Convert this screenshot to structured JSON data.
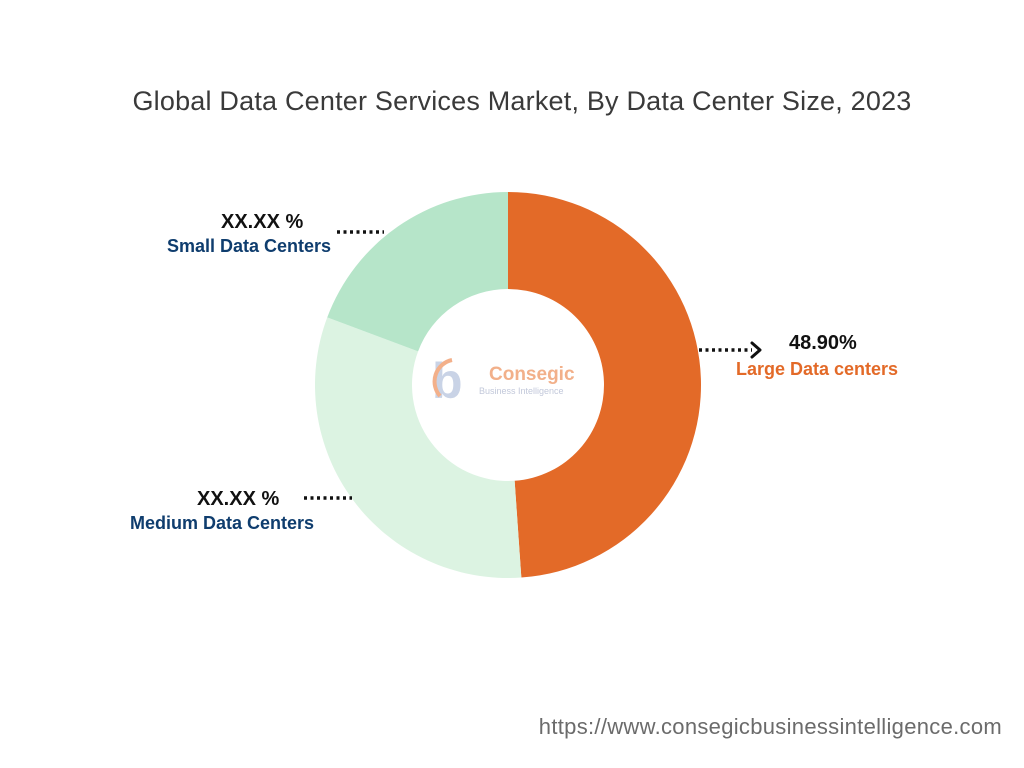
{
  "title": "Global Data Center Services Market, By Data Center Size, 2023",
  "logo": {
    "name": "Consegic",
    "tagline": "Business Intelligence"
  },
  "footer": {
    "url": "https://www.consegicbusinessintelligence.com"
  },
  "chart_data": {
    "type": "pie",
    "donut": true,
    "title": "Global Data Center Services Market, By Data Center Size, 2023",
    "series": [
      {
        "name": "Large Data centers",
        "value": 48.9,
        "label": "48.90%",
        "color": "#e36a28",
        "label_color": "#e36a28"
      },
      {
        "name": "Medium Data Centers",
        "value": 31.8,
        "label": "XX.XX %",
        "color": "#dcf3e2",
        "label_color": "#0f3d6e"
      },
      {
        "name": "Small Data Centers",
        "value": 19.3,
        "label": "XX.XX %",
        "color": "#b6e5c9",
        "label_color": "#0f3d6e"
      }
    ]
  }
}
